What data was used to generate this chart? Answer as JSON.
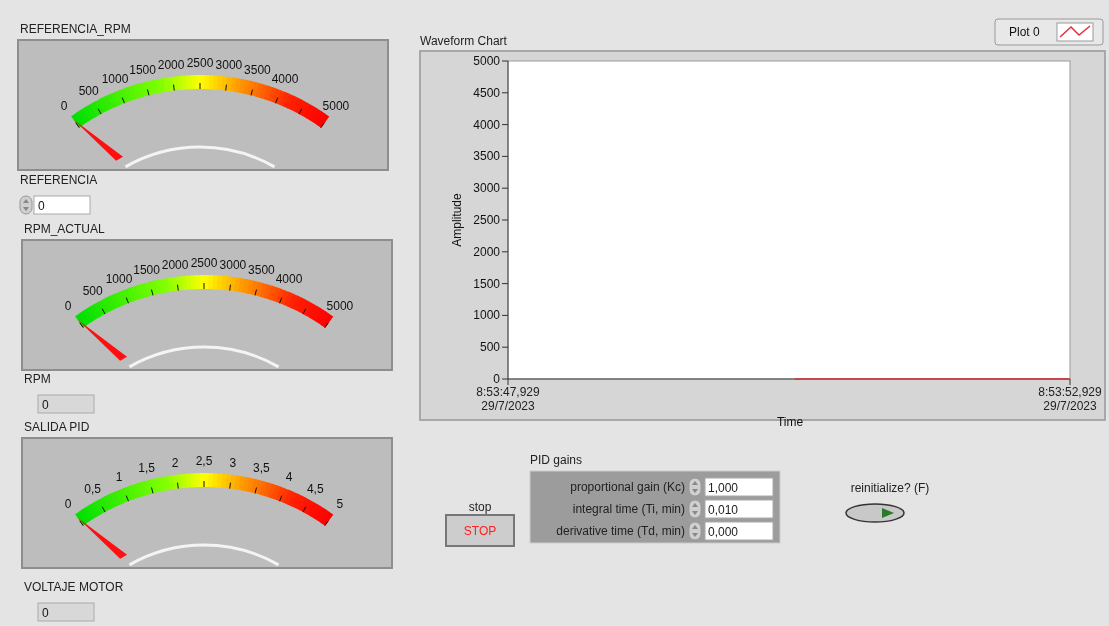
{
  "chart_data": [
    {
      "type": "other",
      "title": "REFERENCIA_RPM",
      "annotations": [
        "0",
        "500",
        "1000",
        "1500",
        "2000",
        "2500",
        "3000",
        "3500",
        "4000",
        "5000",
        "REFERENCIA",
        "0"
      ]
    },
    {
      "type": "line",
      "title": "Waveform Chart",
      "xlabel": "Time",
      "ylabel": "Amplitude",
      "xlim": [
        "2023-07-29T08:53:47.929",
        "2023-07-29T08:53:52.929"
      ],
      "xticks": [
        {
          "value": "2023-07-29T08:53:47.929",
          "label": "8:53:47,929\n29/7/2023"
        },
        {
          "value": "2023-07-29T08:53:52.929",
          "label": "8:53:52,929\n29/7/2023"
        }
      ],
      "ylim": [
        0,
        5000
      ],
      "yticks": [
        0,
        500,
        1000,
        1500,
        2000,
        2500,
        3000,
        3500,
        4000,
        4500,
        5000
      ],
      "legend": "top right",
      "series": [
        {
          "name": "Plot 0",
          "color": "#e0303a",
          "x": [
            "2023-07-29T08:53:50.48",
            "2023-07-29T08:53:52.929"
          ],
          "values": [
            0,
            0
          ]
        }
      ]
    },
    {
      "type": "other",
      "title": "RPM_ACTUAL",
      "annotations": [
        "0",
        "500",
        "1000",
        "1500",
        "2000",
        "2500",
        "3000",
        "3500",
        "4000",
        "5000",
        "RPM",
        "0"
      ]
    },
    {
      "type": "other",
      "title": "SALIDA PID",
      "annotations": [
        "0",
        "0,5",
        "1",
        "1,5",
        "2",
        "2,5",
        "3",
        "3,5",
        "4",
        "4,5",
        "5",
        "VOLTAJE MOTOR",
        "0"
      ]
    },
    {
      "type": "other",
      "annotations": [
        "stop",
        "STOP",
        "PID gains",
        "proportional gain (Kc)",
        "1,000",
        "integral time (Ti, min)",
        "0,010",
        "derivative time (Td, min)",
        "0,000",
        "reinitialize? (F)"
      ]
    }
  ]
}
